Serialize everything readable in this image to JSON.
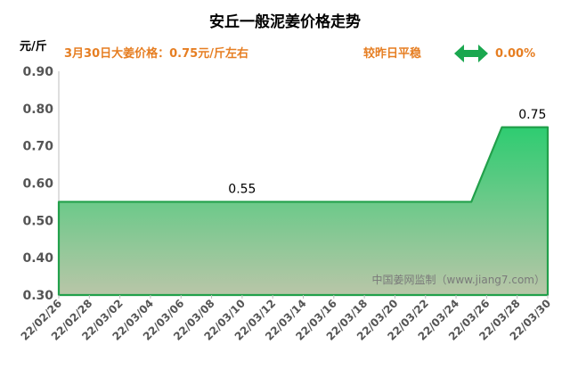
{
  "chart_data": {
    "type": "area",
    "title": "安丘一般泥姜价格走势",
    "ylabel": "元/斤",
    "ylim": [
      0.3,
      0.9
    ],
    "yticks": [
      "0.90",
      "0.80",
      "0.70",
      "0.60",
      "0.50",
      "0.40",
      "0.30"
    ],
    "yticks_values": [
      0.9,
      0.8,
      0.7,
      0.6,
      0.5,
      0.4,
      0.3
    ],
    "x_tick_labels": [
      "22/02/26",
      "22/02/28",
      "22/03/02",
      "22/03/04",
      "22/03/06",
      "22/03/08",
      "22/03/10",
      "22/03/12",
      "22/03/14",
      "22/03/16",
      "22/03/18",
      "22/03/20",
      "22/03/22",
      "22/03/24",
      "22/03/26",
      "22/03/28",
      "22/03/30"
    ],
    "x": [
      "22/02/26",
      "22/02/27",
      "22/02/28",
      "22/03/01",
      "22/03/02",
      "22/03/03",
      "22/03/04",
      "22/03/05",
      "22/03/06",
      "22/03/07",
      "22/03/08",
      "22/03/09",
      "22/03/10",
      "22/03/11",
      "22/03/12",
      "22/03/13",
      "22/03/14",
      "22/03/15",
      "22/03/16",
      "22/03/17",
      "22/03/18",
      "22/03/19",
      "22/03/20",
      "22/03/21",
      "22/03/22",
      "22/03/23",
      "22/03/24",
      "22/03/25",
      "22/03/26",
      "22/03/27",
      "22/03/28",
      "22/03/29",
      "22/03/30"
    ],
    "values": [
      0.55,
      0.55,
      0.55,
      0.55,
      0.55,
      0.55,
      0.55,
      0.55,
      0.55,
      0.55,
      0.55,
      0.55,
      0.55,
      0.55,
      0.55,
      0.55,
      0.55,
      0.55,
      0.55,
      0.55,
      0.55,
      0.55,
      0.55,
      0.55,
      0.55,
      0.55,
      0.55,
      0.55,
      0.65,
      0.75,
      0.75,
      0.75,
      0.75
    ],
    "data_labels": [
      {
        "x": "22/03/10",
        "text": "0.55"
      },
      {
        "x": "22/03/29",
        "text": "0.75"
      }
    ],
    "grid": false,
    "colors": {
      "title": "#000000",
      "line": "#22a04b",
      "fill_top": "#2ecc71",
      "fill_bottom": "#b9c6a8",
      "orange_text": "#e67e22",
      "arrow": "#1aa74f",
      "axis_text": "#555555",
      "watermark": "#7a7a7a"
    }
  },
  "info": {
    "price_line": "3月30日大姜价格：0.75元/斤左右",
    "trend_label": "较昨日平稳",
    "change_pct": "0.00%"
  },
  "watermark": "中国姜网监制（www.jiang7.com）",
  "icons": {
    "change": "double-arrow-icon"
  }
}
